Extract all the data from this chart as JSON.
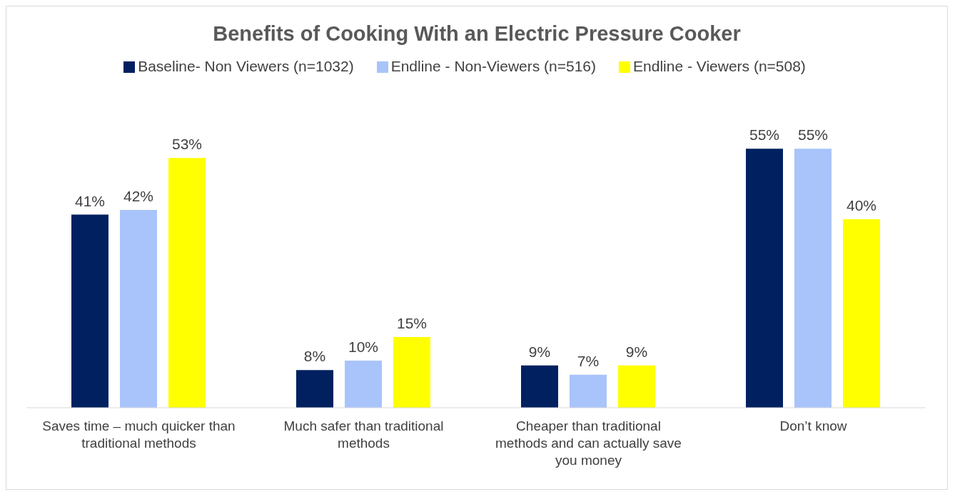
{
  "chart_data": {
    "type": "bar",
    "title": "Benefits of Cooking With an Electric Pressure Cooker",
    "categories": [
      "Saves time – much quicker than traditional methods",
      "Much safer than traditional methods",
      "Cheaper than traditional methods and can actually save you money",
      "Don’t know"
    ],
    "series": [
      {
        "name": "Baseline- Non Viewers (n=1032)",
        "color": "#002060",
        "values": [
          41,
          8,
          9,
          55
        ],
        "value_labels": [
          "41%",
          "8%",
          "9%",
          "55%"
        ]
      },
      {
        "name": "Endline - Non-Viewers (n=516)",
        "color": "#a9c4fa",
        "values": [
          42,
          10,
          7,
          55
        ],
        "value_labels": [
          "42%",
          "10%",
          "7%",
          "55%"
        ]
      },
      {
        "name": "Endline - Viewers (n=508)",
        "color": "#ffff00",
        "values": [
          53,
          15,
          9,
          40
        ],
        "value_labels": [
          "53%",
          "15%",
          "9%",
          "40%"
        ]
      }
    ],
    "legend": "top",
    "grid": false
  }
}
